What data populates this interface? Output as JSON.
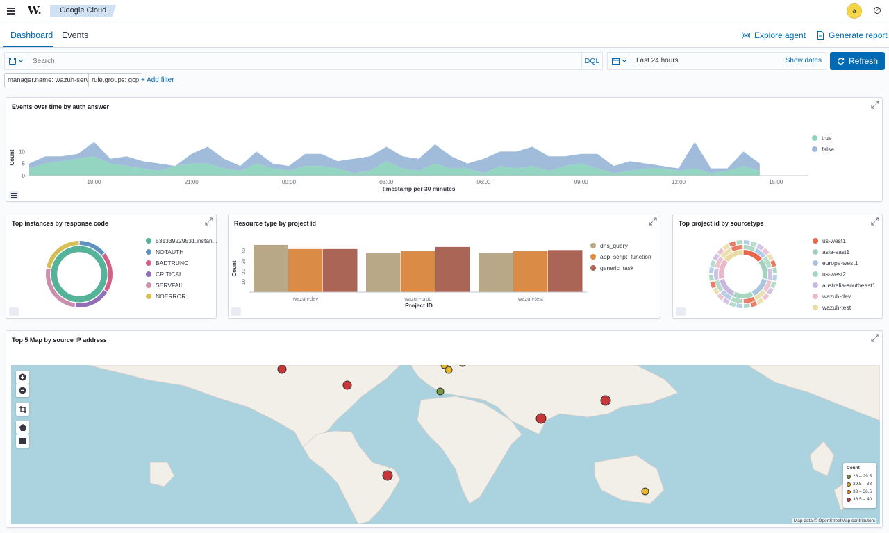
{
  "topbar": {
    "logo": "W.",
    "breadcrumb": "Google Cloud",
    "avatar_initial": "a",
    "help_glyph": "?"
  },
  "tabs": [
    {
      "label": "Dashboard",
      "active": true
    },
    {
      "label": "Events",
      "active": false
    }
  ],
  "header_actions": {
    "explore_agent": "Explore agent",
    "generate_report": "Generate report"
  },
  "search": {
    "placeholder": "Search",
    "language": "DQL"
  },
  "date_picker": {
    "range": "Last 24 hours",
    "show_dates": "Show dates"
  },
  "refresh_label": "Refresh",
  "filters": [
    "manager.name: wazuh-server",
    "rule.groups: gcp"
  ],
  "add_filter": "+ Add filter",
  "colors": {
    "accent": "#006bb4",
    "true": "#8dd3bd",
    "false": "#9bb8d8"
  },
  "panels": {
    "events_over_time": {
      "title": "Events over time by auth answer",
      "chart_data": {
        "type": "area",
        "stacked": true,
        "title": "Events over time by auth answer",
        "xlabel": "timestamp per 30 minutes",
        "ylabel": "Count",
        "ylim": [
          0,
          15
        ],
        "yticks": [
          0,
          5,
          10
        ],
        "xticks": [
          "18:00",
          "21:00",
          "00:00",
          "03:00",
          "06:00",
          "09:00",
          "12:00",
          "15:00"
        ],
        "x_range_hours": [
          16.0,
          15.5
        ],
        "x_start": "16:00",
        "x_step": "30m",
        "series": [
          {
            "name": "true",
            "values": [
              3,
              5,
              6,
              7,
              8,
              5,
              4,
              3,
              2,
              4,
              5,
              5,
              3,
              2,
              5,
              3,
              2,
              4,
              4,
              3,
              1,
              2,
              6,
              3,
              2,
              5,
              3,
              3,
              1,
              4,
              3,
              4,
              2,
              4,
              5,
              3,
              1,
              2,
              3,
              3,
              2,
              3,
              1,
              2,
              4,
              2
            ]
          },
          {
            "name": "false",
            "values": [
              2,
              3,
              2,
              2,
              6,
              2,
              4,
              3,
              3,
              0,
              4,
              7,
              4,
              2,
              5,
              2,
              2,
              5,
              5,
              3,
              6,
              6,
              6,
              5,
              5,
              8,
              5,
              2,
              6,
              6,
              7,
              8,
              6,
              4,
              4,
              6,
              3,
              4,
              2,
              1,
              1,
              11,
              2,
              1,
              6,
              3
            ]
          }
        ]
      }
    },
    "top_instances": {
      "title": "Top instances by response code",
      "chart_data": {
        "type": "pie",
        "donut": true,
        "title": "Top instances by response code",
        "inner_ring": [
          {
            "name": "531339229531.instan...",
            "value": 100
          }
        ],
        "outer_ring": [
          {
            "name": "NOTAUTH",
            "value": 14
          },
          {
            "name": "BADTRUNC",
            "value": 20
          },
          {
            "name": "CRITICAL",
            "value": 18
          },
          {
            "name": "SERVFAIL",
            "value": 26
          },
          {
            "name": "NOERROR",
            "value": 22
          }
        ],
        "legend": [
          "531339229531.instan...",
          "NOTAUTH",
          "BADTRUNC",
          "CRITICAL",
          "SERVFAIL",
          "NOERROR"
        ],
        "legend_colors": [
          "#54b399",
          "#6092c0",
          "#d36086",
          "#9170b8",
          "#ca8eae",
          "#d6bf57"
        ]
      }
    },
    "resource_type": {
      "title": "Resource type by project id",
      "chart_data": {
        "type": "bar",
        "title": "Resource type by project id",
        "xlabel": "Project ID",
        "ylabel": "Count",
        "ylim": [
          0,
          50
        ],
        "yticks": [
          10,
          20,
          30,
          40
        ],
        "categories": [
          "wazuh-dev",
          "wazuh-prod",
          "wazuh-test"
        ],
        "series": [
          {
            "name": "dns_query",
            "values": [
              46,
              38,
              38
            ],
            "color": "#b9a888"
          },
          {
            "name": "app_script_function",
            "values": [
              42,
              40,
              40
            ],
            "color": "#da8b45"
          },
          {
            "name": "generic_task",
            "values": [
              42,
              44,
              41
            ],
            "color": "#aa6556"
          }
        ]
      }
    },
    "top_project": {
      "title": "Top project id by sourcetype",
      "chart_data": {
        "type": "pie",
        "donut": true,
        "rings": 3,
        "title": "Top project id by sourcetype",
        "legend": [
          "us-west1",
          "asia-east1",
          "europe-west1",
          "us-west2",
          "australia-southeast1",
          "wazuh-dev",
          "wazuh-test"
        ],
        "legend_colors": [
          "#e7664c",
          "#a3d1bd",
          "#aac4e0",
          "#a9d6c2",
          "#c9b8de",
          "#eab8c8",
          "#e8dba3"
        ]
      }
    },
    "map": {
      "title": "Top 5 Map by source IP address",
      "attribution": "Map data © OpenStreetMap contributors",
      "legend_title": "Count",
      "legend": [
        {
          "label": "26 – 29.5",
          "color": "#7b9a3c"
        },
        {
          "label": "29.5 – 33",
          "color": "#e8b52e"
        },
        {
          "label": "33 – 36.5",
          "color": "#e0822b"
        },
        {
          "label": "36.5 – 40",
          "color": "#c7373a"
        }
      ]
    }
  }
}
